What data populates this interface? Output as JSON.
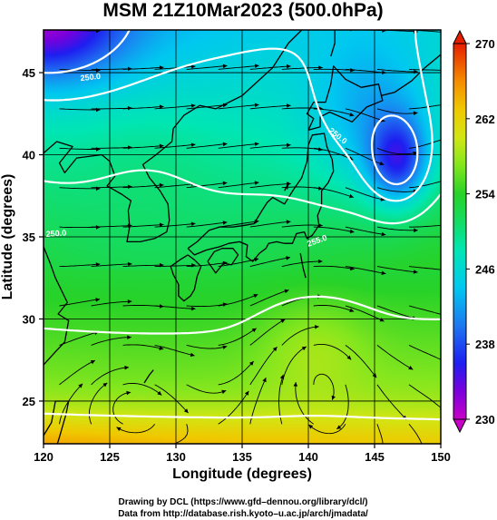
{
  "chart_data": {
    "type": "heatmap",
    "title": "MSM 21Z10Mar2023 (500.0hPa)",
    "xlabel": "Longitude (degrees)",
    "ylabel": "Latitude  (degrees)",
    "xlim": [
      120,
      150
    ],
    "ylim": [
      22.4,
      47.6
    ],
    "x_ticks": [
      "120",
      "125",
      "130",
      "135",
      "140",
      "145",
      "150"
    ],
    "y_ticks": [
      "25",
      "30",
      "35",
      "40",
      "45"
    ],
    "x_tick_values": [
      120,
      125,
      130,
      135,
      140,
      145,
      150
    ],
    "y_tick_values": [
      25,
      30,
      35,
      40,
      45
    ],
    "grid": true,
    "variable": "temperature (K), colour-filled, with wind streamlines",
    "colorbar": {
      "range": [
        230,
        270
      ],
      "ticks": [
        "230",
        "238",
        "246",
        "254",
        "262",
        "270"
      ],
      "tick_values": [
        230,
        238,
        246,
        254,
        262,
        270
      ],
      "stops": [
        {
          "value": 230,
          "color": "#c800c8"
        },
        {
          "value": 233,
          "color": "#7a00dc"
        },
        {
          "value": 236,
          "color": "#1e1ef0"
        },
        {
          "value": 240,
          "color": "#1e78f0"
        },
        {
          "value": 244,
          "color": "#00c8f0"
        },
        {
          "value": 248,
          "color": "#00e6b4"
        },
        {
          "value": 251,
          "color": "#14dc64"
        },
        {
          "value": 254,
          "color": "#28d228"
        },
        {
          "value": 257,
          "color": "#82e61e"
        },
        {
          "value": 260,
          "color": "#d2e614"
        },
        {
          "value": 263,
          "color": "#f0c800"
        },
        {
          "value": 266,
          "color": "#f58c00"
        },
        {
          "value": 270,
          "color": "#e61e00"
        }
      ]
    },
    "contour_labels": [
      "250.0",
      "250.0",
      "250.0",
      "255.0"
    ],
    "field_features": [
      {
        "name": "cold low",
        "lon": 146.8,
        "lat": 39.6,
        "value": 244
      },
      {
        "name": "cold north-west corner",
        "lon": 121,
        "lat": 47,
        "value": 238
      },
      {
        "name": "warm south band",
        "lon": 128,
        "lat": 23,
        "value": 264
      }
    ]
  },
  "credits": [
    "Drawing by DCL (https://www.gfd–dennou.org/library/dcl/)",
    "Data from http://database.rish.kyoto–u.ac.jp/arch/jmadata/"
  ]
}
